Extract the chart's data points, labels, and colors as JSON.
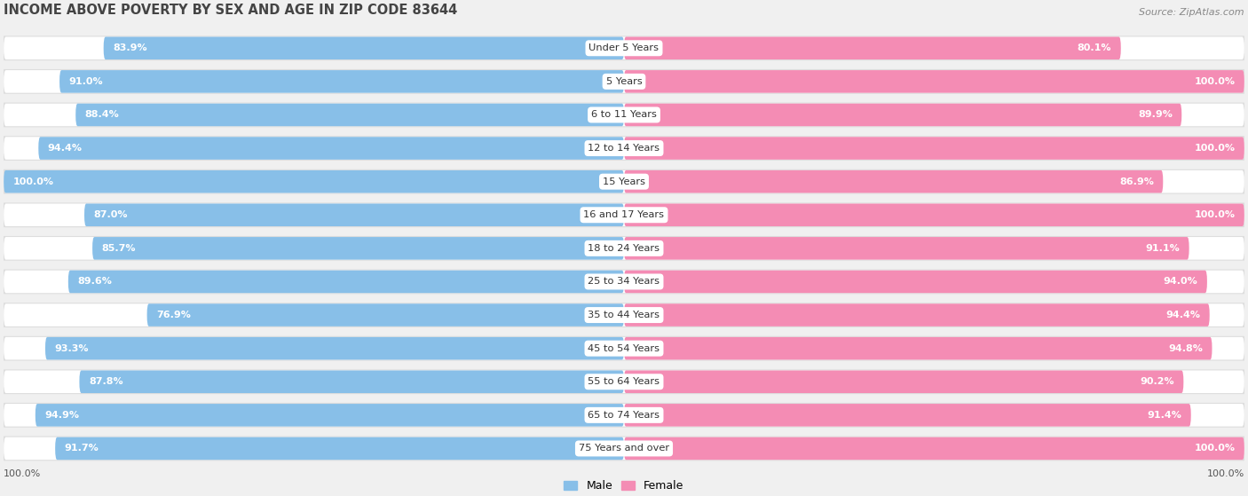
{
  "title": "INCOME ABOVE POVERTY BY SEX AND AGE IN ZIP CODE 83644",
  "source": "Source: ZipAtlas.com",
  "categories": [
    "Under 5 Years",
    "5 Years",
    "6 to 11 Years",
    "12 to 14 Years",
    "15 Years",
    "16 and 17 Years",
    "18 to 24 Years",
    "25 to 34 Years",
    "35 to 44 Years",
    "45 to 54 Years",
    "55 to 64 Years",
    "65 to 74 Years",
    "75 Years and over"
  ],
  "male_values": [
    83.9,
    91.0,
    88.4,
    94.4,
    100.0,
    87.0,
    85.7,
    89.6,
    76.9,
    93.3,
    87.8,
    94.9,
    91.7
  ],
  "female_values": [
    80.1,
    100.0,
    89.9,
    100.0,
    86.9,
    100.0,
    91.1,
    94.0,
    94.4,
    94.8,
    90.2,
    91.4,
    100.0
  ],
  "male_color": "#88bfe8",
  "male_color_dark": "#6aabd8",
  "female_color": "#f48cb4",
  "female_color_dark": "#ee6699",
  "background_color": "#f0f0f0",
  "bar_bg_color": "#e8e8e8",
  "legend_labels": [
    "Male",
    "Female"
  ],
  "x_axis_label_left": "100.0%",
  "x_axis_label_right": "100.0%"
}
